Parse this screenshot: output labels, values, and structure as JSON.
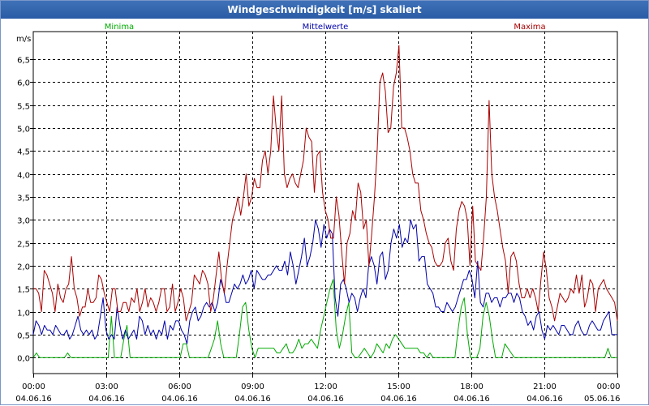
{
  "window": {
    "title": "Windgeschwindigkeit [m/s] skaliert"
  },
  "chart_data": {
    "type": "line",
    "title": "Windgeschwindigkeit [m/s] skaliert",
    "ylabel": "m/s",
    "xlabel": "",
    "ylim": [
      -0.35,
      7.1
    ],
    "xlim": [
      0,
      24
    ],
    "yticks": [
      0,
      0.5,
      1,
      1.5,
      2,
      2.5,
      3,
      3.5,
      4,
      4.5,
      5,
      5.5,
      6,
      6.5
    ],
    "ytick_labels": [
      "0,0",
      "0,5",
      "1,0",
      "1,5",
      "2,0",
      "2,5",
      "3,0",
      "3,5",
      "4,0",
      "4,5",
      "5,0",
      "5,5",
      "6,0",
      "6,5"
    ],
    "xticks": [
      0,
      3,
      6,
      9,
      12,
      15,
      18,
      21,
      24
    ],
    "xtick_labels": [
      {
        "time": "00:00",
        "date": "04.06.16"
      },
      {
        "time": "03:00",
        "date": "04.06.16"
      },
      {
        "time": "06:00",
        "date": "04.06.16"
      },
      {
        "time": "09:00",
        "date": "04.06.16"
      },
      {
        "time": "12:00",
        "date": "04.06.16"
      },
      {
        "time": "15:00",
        "date": "04.06.16"
      },
      {
        "time": "18:00",
        "date": "04.06.16"
      },
      {
        "time": "21:00",
        "date": "04.06.16"
      },
      {
        "time": "00:00",
        "date": "05.06.16"
      }
    ],
    "grid": true,
    "x_step_hours": 0.16667,
    "series": [
      {
        "name": "Minima",
        "color": "#00aa00",
        "values": [
          0.0,
          0.1,
          0.0,
          0.0,
          0.0,
          0.0,
          0.0,
          0.0,
          0.0,
          0.0,
          0.0,
          0.1,
          0.0,
          0.0,
          0.0,
          0.0,
          0.0,
          0.0,
          0.0,
          0.0,
          0.0,
          0.0,
          0.0,
          0.0,
          0.0,
          0.9,
          0.0,
          0.0,
          0.0,
          0.4,
          0.7,
          0.0,
          0.0,
          0.0,
          0.0,
          0.0,
          0.0,
          0.0,
          0.0,
          0.0,
          0.0,
          0.0,
          0.0,
          0.0,
          0.0,
          0.0,
          0.0,
          0.0,
          0.3,
          0.3,
          0.0,
          0.0,
          0.0,
          0.0,
          0.0,
          0.0,
          0.0,
          0.2,
          0.4,
          0.8,
          0.3,
          0.0,
          0.0,
          0.0,
          0.0,
          0.0,
          0.5,
          1.1,
          1.2,
          0.6,
          0.2,
          0.0,
          0.2,
          0.2,
          0.2,
          0.2,
          0.2,
          0.2,
          0.1,
          0.1,
          0.2,
          0.3,
          0.1,
          0.1,
          0.2,
          0.4,
          0.2,
          0.3,
          0.3,
          0.4,
          0.3,
          0.2,
          0.6,
          0.9,
          1.2,
          1.5,
          1.7,
          0.6,
          0.2,
          0.5,
          0.9,
          1.2,
          0.1,
          0.0,
          0.0,
          0.1,
          0.2,
          0.1,
          0.0,
          0.1,
          0.3,
          0.2,
          0.1,
          0.3,
          0.2,
          0.4,
          0.5,
          0.4,
          0.3,
          0.2,
          0.2,
          0.2,
          0.2,
          0.2,
          0.1,
          0.1,
          0.0,
          0.1,
          0.0,
          0.0,
          0.0,
          0.0,
          0.0,
          0.0,
          0.0,
          0.0,
          0.6,
          1.1,
          1.3,
          0.5,
          0.0,
          0.0,
          0.0,
          0.2,
          0.9,
          1.2,
          0.9,
          0.4,
          0.0,
          0.0,
          0.0,
          0.3,
          0.2,
          0.1,
          0.0,
          0.0,
          0.0,
          0.0,
          0.0,
          0.0,
          0.0,
          0.0,
          0.0,
          0.0,
          0.0,
          0.0,
          0.0,
          0.0,
          0.0,
          0.0,
          0.0,
          0.0,
          0.0,
          0.0,
          0.0,
          0.0,
          0.0,
          0.0,
          0.0,
          0.0,
          0.0,
          0.0,
          0.0,
          0.0,
          0.2,
          0.0,
          0.0,
          0.0
        ]
      },
      {
        "name": "Mittelwerte",
        "color": "#0000aa",
        "values": [
          0.5,
          0.8,
          0.7,
          0.5,
          0.7,
          0.6,
          0.6,
          0.5,
          0.7,
          0.6,
          0.5,
          0.5,
          0.6,
          0.4,
          0.5,
          0.7,
          0.9,
          0.6,
          0.5,
          0.6,
          0.5,
          0.6,
          0.4,
          0.5,
          0.9,
          1.3,
          0.6,
          0.4,
          0.5,
          0.4,
          1.1,
          0.7,
          0.4,
          0.6,
          0.4,
          0.5,
          0.6,
          0.4,
          0.9,
          0.8,
          0.5,
          0.7,
          0.5,
          0.6,
          0.4,
          0.6,
          0.5,
          0.8,
          0.4,
          0.7,
          0.6,
          0.8,
          0.8,
          0.6,
          0.5,
          0.3,
          0.8,
          1.0,
          1.1,
          0.8,
          0.9,
          1.1,
          1.2,
          1.1,
          1.2,
          1.0,
          1.2,
          1.7,
          1.5,
          1.2,
          1.2,
          1.4,
          1.6,
          1.5,
          1.6,
          1.8,
          1.6,
          1.7,
          1.9,
          1.5,
          1.9,
          1.8,
          1.7,
          1.7,
          1.8,
          1.8,
          1.9,
          2.0,
          1.9,
          1.9,
          2.1,
          1.8,
          2.3,
          2.0,
          1.6,
          1.9,
          2.2,
          2.6,
          2.0,
          2.2,
          2.5,
          3.0,
          2.8,
          2.4,
          2.9,
          2.6,
          2.8,
          2.7,
          1.3,
          0.9,
          1.6,
          1.7,
          1.5,
          1.2,
          1.4,
          1.3,
          1.0,
          1.3,
          1.5,
          1.3,
          2.0,
          2.2,
          2.0,
          1.6,
          2.2,
          2.3,
          1.7,
          1.9,
          2.5,
          2.8,
          2.6,
          2.9,
          2.4,
          2.6,
          2.5,
          3.0,
          2.8,
          2.9,
          2.1,
          2.2,
          2.2,
          1.6,
          1.5,
          1.4,
          1.1,
          1.1,
          1.0,
          1.0,
          1.2,
          1.1,
          1.0,
          1.1,
          1.3,
          1.5,
          1.7,
          1.7,
          1.9,
          1.7,
          1.3,
          2.1,
          1.2,
          1.1,
          1.4,
          1.4,
          1.2,
          1.3,
          1.3,
          1.1,
          1.3,
          1.3,
          1.4,
          1.4,
          1.2,
          1.4,
          1.3,
          1.0,
          0.9,
          0.7,
          0.8,
          0.6,
          0.9,
          1.0,
          0.6,
          0.4,
          0.7,
          0.6,
          0.7,
          0.6,
          0.5,
          0.7,
          0.7,
          0.6,
          0.5,
          0.5,
          0.7,
          0.8,
          0.6,
          0.5,
          0.5,
          0.7,
          0.8,
          0.7,
          0.6,
          0.6,
          0.8,
          0.9,
          1.0,
          0.5,
          0.5,
          0.5
        ]
      },
      {
        "name": "Maxima",
        "color": "#aa0000",
        "values": [
          1.5,
          1.5,
          1.4,
          1.0,
          1.9,
          1.8,
          1.6,
          1.4,
          1.0,
          1.6,
          1.3,
          1.2,
          1.5,
          1.6,
          2.2,
          1.5,
          1.3,
          0.9,
          1.1,
          1.1,
          1.5,
          1.2,
          1.2,
          1.3,
          1.8,
          1.7,
          1.4,
          1.2,
          1.0,
          1.5,
          1.5,
          1.0,
          1.0,
          1.2,
          1.2,
          1.0,
          1.3,
          1.2,
          1.5,
          1.0,
          1.2,
          1.5,
          1.1,
          1.3,
          1.2,
          1.0,
          1.2,
          1.5,
          1.5,
          1.0,
          1.1,
          1.6,
          1.0,
          1.2,
          1.5,
          1.3,
          0.8,
          1.0,
          1.2,
          1.8,
          1.7,
          1.6,
          1.9,
          1.8,
          1.6,
          1.0,
          1.3,
          1.8,
          2.3,
          1.7,
          1.4,
          2.0,
          2.5,
          3.0,
          3.2,
          3.5,
          3.1,
          3.5,
          4.0,
          3.3,
          3.5,
          3.9,
          3.7,
          3.7,
          4.3,
          4.5,
          4.0,
          4.5,
          5.7,
          5.0,
          4.5,
          5.7,
          4.0,
          3.7,
          3.9,
          4.0,
          3.8,
          3.7,
          4.0,
          4.3,
          5.0,
          4.8,
          4.7,
          3.6,
          4.4,
          4.5,
          3.6,
          3.2,
          3.0,
          2.6,
          2.6,
          3.5,
          3.1,
          2.3,
          1.6,
          2.5,
          2.7,
          3.2,
          3.0,
          3.8,
          3.6,
          2.8,
          3.0,
          2.0,
          2.7,
          3.5,
          4.5,
          6.0,
          6.2,
          5.8,
          4.9,
          5.0,
          5.9,
          6.2,
          6.8,
          5.0,
          5.0,
          4.8,
          4.5,
          4.0,
          3.8,
          3.8,
          3.2,
          3.0,
          2.7,
          2.5,
          2.4,
          2.1,
          2.0,
          2.0,
          2.1,
          2.5,
          2.6,
          2.1,
          1.9,
          2.8,
          3.2,
          3.4,
          3.3,
          3.0,
          2.0,
          3.3,
          2.1,
          2.0,
          1.9,
          2.6,
          3.5,
          5.6,
          4.0,
          3.5,
          3.2,
          2.8,
          2.4,
          2.1,
          1.4,
          2.2,
          2.3,
          2.1,
          1.6,
          1.3,
          1.3,
          1.5,
          1.3,
          1.5,
          1.3,
          1.0,
          1.7,
          2.3,
          1.9,
          1.3,
          1.1,
          0.8,
          1.1,
          1.4,
          1.3,
          1.2,
          1.3,
          1.5,
          1.4,
          1.8,
          1.4,
          1.8,
          1.1,
          1.3,
          1.7,
          1.6,
          1.0,
          1.5,
          1.6,
          1.7,
          1.5,
          1.4,
          1.3,
          1.2,
          0.8
        ]
      }
    ]
  }
}
